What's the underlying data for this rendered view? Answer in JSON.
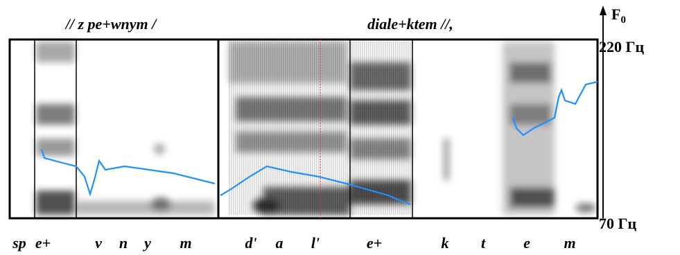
{
  "header": {
    "phrase_1": "// z pe+wnym  /",
    "phrase_2": "diale+ktem //,",
    "axis_title": "F",
    "axis_title_sub": "0",
    "axis_top": "220 Гц",
    "axis_bottom": "70 Гц"
  },
  "segments": [
    "sp",
    "e+",
    "v",
    "n",
    "y",
    "m",
    "d'",
    "a",
    "l'",
    "e+",
    "k",
    "t",
    "e",
    "m"
  ]
}
